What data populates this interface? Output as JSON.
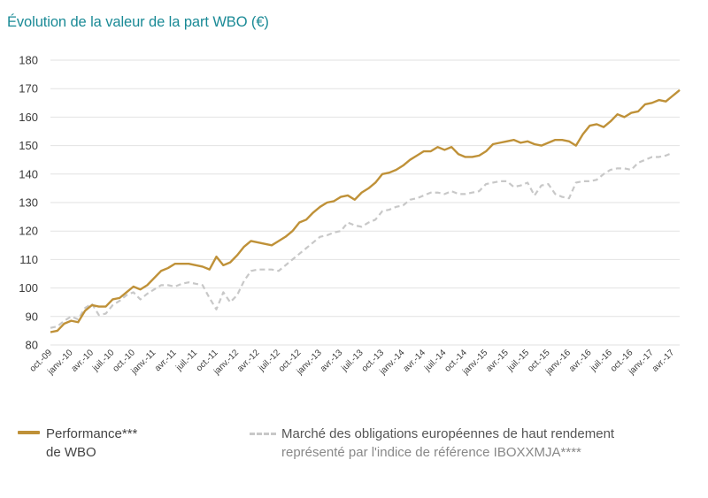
{
  "chart_data": {
    "type": "line",
    "title": "Évolution de la valeur de la part WBO (€)",
    "xlabel": "",
    "ylabel": "",
    "ylim": [
      80,
      180
    ],
    "yticks": [
      80,
      90,
      100,
      110,
      120,
      130,
      140,
      150,
      160,
      170,
      180
    ],
    "grid": true,
    "legend_position": "bottom",
    "xtick_labels": [
      "oct.-09",
      "janv.-10",
      "avr.-10",
      "juil.-10",
      "oct.-10",
      "janv.-11",
      "avr.-11",
      "juil.-11",
      "oct.-11",
      "janv.-12",
      "avr.-12",
      "juil.-12",
      "oct.-12",
      "janv.-13",
      "avr.-13",
      "juil.-13",
      "oct.-13",
      "janv.-14",
      "avr.-14",
      "juil.-14",
      "oct.-14",
      "janv.-15",
      "avr.-15",
      "juil.-15",
      "oct.-15",
      "janv.-16",
      "avr.-16",
      "juil.-16",
      "oct.-16",
      "janv.-17",
      "avr.-17"
    ],
    "x_start": "oct.-09",
    "x_step_months": 1,
    "series": [
      {
        "name": "Performance*** de WBO",
        "style": "solid",
        "color": "#bf9138",
        "values": [
          84.5,
          85,
          87.5,
          88.5,
          88,
          92,
          94,
          93.5,
          93.5,
          96,
          96.5,
          98.5,
          100.5,
          99.5,
          101,
          103.5,
          106,
          107,
          108.5,
          108.5,
          108.5,
          108,
          107.5,
          106.5,
          111,
          108,
          109,
          111.5,
          114.5,
          116.5,
          116,
          115.5,
          115,
          116.5,
          118,
          120,
          123,
          124,
          126.5,
          128.5,
          130,
          130.5,
          132,
          132.5,
          131,
          133.5,
          135,
          137,
          140,
          140.5,
          141.5,
          143,
          145,
          146.5,
          148,
          148,
          149.5,
          148.5,
          149.5,
          147,
          146,
          146,
          146.5,
          148,
          150.5,
          151,
          151.5,
          152,
          151,
          151.5,
          150.5,
          150,
          151,
          152,
          152,
          151.5,
          150,
          154,
          157,
          157.5,
          156.5,
          158.5,
          161,
          160,
          161.5,
          162,
          164.5,
          165,
          166,
          165.5,
          167.5,
          169.5
        ]
      },
      {
        "name": "Marché des obligations européennes de haut rendement représenté par l'indice de référence IBOXXMJA****",
        "style": "dashed",
        "color": "#c8c8c8",
        "values": [
          86,
          86.5,
          88.5,
          90,
          89,
          93,
          94.5,
          90.5,
          91,
          94,
          95.5,
          97.5,
          98.5,
          96,
          98,
          99.5,
          101,
          101,
          100.5,
          101.5,
          102,
          101.5,
          101,
          96.5,
          92.5,
          98.5,
          95,
          97.5,
          102.5,
          106,
          106.5,
          106.5,
          106.5,
          106,
          108,
          110,
          112,
          114,
          116,
          118,
          118.5,
          119.5,
          120,
          123,
          122,
          121.5,
          123,
          124,
          127,
          127.5,
          128.5,
          129,
          131,
          131.5,
          132.5,
          133.5,
          133.5,
          133,
          134,
          133,
          133,
          133.5,
          134,
          136.5,
          137,
          137.5,
          137.5,
          135.5,
          136,
          137,
          132.5,
          136,
          136.5,
          133,
          132,
          131.5,
          137,
          137.5,
          137.5,
          138,
          140,
          141.5,
          142,
          142,
          141.5,
          144,
          145,
          146,
          146,
          146.5,
          147.5
        ]
      }
    ]
  },
  "legend": {
    "a_line1": "Performance***",
    "a_line2": "de WBO",
    "b_line1": "Marché des obligations européennes de haut rendement",
    "b_line2": "représenté par l'indice de référence IBOXXMJA****"
  },
  "colors": {
    "title": "#1a8a96",
    "grid": "#e2e2e2",
    "axis_text": "#3a3a3a"
  }
}
